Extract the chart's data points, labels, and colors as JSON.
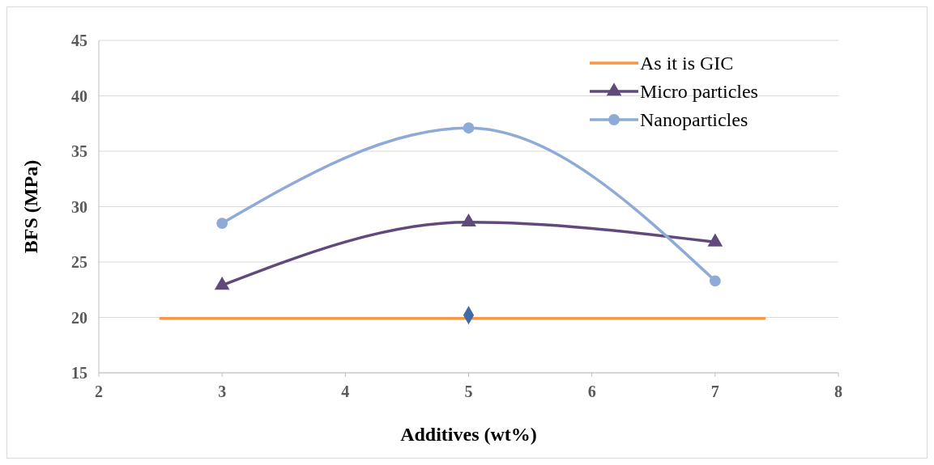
{
  "chart_data": {
    "type": "line",
    "xlabel": "Additives  (wt%)",
    "ylabel": "BFS (MPa)",
    "xlim": [
      2,
      8
    ],
    "xticks": [
      2,
      3,
      4,
      5,
      6,
      7,
      8
    ],
    "ylim": [
      15,
      45
    ],
    "yticks": [
      15,
      20,
      25,
      30,
      35,
      40,
      45
    ],
    "grid": "y",
    "legend": "top right",
    "series": [
      {
        "name": "As it is GIC",
        "color": "#f79646",
        "x": [
          2.5,
          7.4
        ],
        "values": [
          19.9,
          19.9
        ],
        "marker": "none"
      },
      {
        "name": "Micro particles",
        "color": "#604a7b",
        "x": [
          3,
          5,
          7
        ],
        "values": [
          22.9,
          28.6,
          26.8
        ],
        "marker": "triangle"
      },
      {
        "name": "Nanoparticles",
        "color": "#8eaad6",
        "x": [
          3,
          5,
          7
        ],
        "values": [
          28.5,
          37.1,
          23.3
        ],
        "marker": "circle"
      },
      {
        "type": "scatter",
        "color": "#3f6aa6",
        "x": [
          5
        ],
        "values": [
          20.2
        ],
        "marker": "diamond"
      }
    ]
  }
}
